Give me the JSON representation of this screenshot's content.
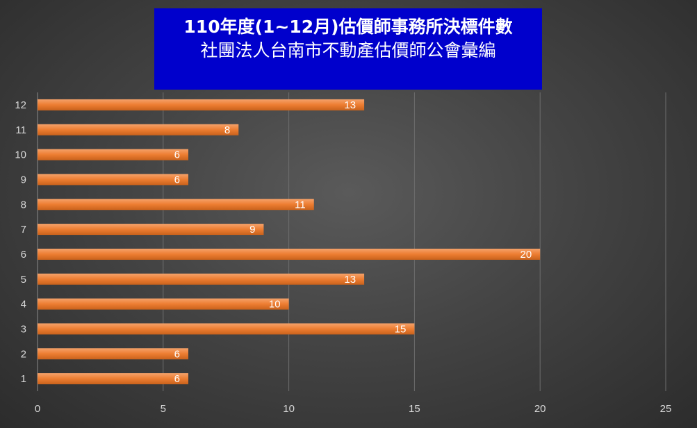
{
  "title": {
    "line1": "110年度(1~12月)估價師事務所決標件數",
    "line2": "社團法人台南市不動產估價師公會彙編"
  },
  "colors": {
    "bar": "#ed7d31",
    "title_bg": "#0000cc",
    "grid": "#6e6e6e"
  },
  "chart_data": {
    "type": "bar",
    "orientation": "horizontal",
    "categories": [
      "1",
      "2",
      "3",
      "4",
      "5",
      "6",
      "7",
      "8",
      "9",
      "10",
      "11",
      "12"
    ],
    "values": [
      6,
      6,
      15,
      10,
      13,
      20,
      9,
      11,
      6,
      6,
      8,
      13
    ],
    "xlim": [
      0,
      25
    ],
    "xticks": [
      0,
      5,
      10,
      15,
      20,
      25
    ],
    "grid": true,
    "data_labels": true,
    "legend": "none"
  }
}
